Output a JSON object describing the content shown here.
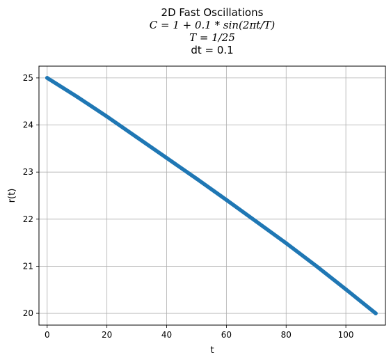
{
  "chart_data": {
    "type": "line",
    "title_lines": [
      "2D Fast Oscillations",
      "C = 1 + 0.1 * sin(2πt/T)",
      "T = 1/25",
      "dt = 0.1"
    ],
    "xlabel": "t",
    "ylabel": "r(t)",
    "xlim": [
      -2.75,
      113.25
    ],
    "ylim": [
      19.75,
      25.25
    ],
    "x_ticks": [
      0,
      20,
      40,
      60,
      80,
      100
    ],
    "y_ticks": [
      20,
      21,
      22,
      23,
      24,
      25
    ],
    "grid": true,
    "series": [
      {
        "x": [
          0,
          10,
          20,
          30,
          40,
          50,
          60,
          70,
          80,
          90,
          100,
          110
        ],
        "y": [
          25.0,
          24.6,
          24.18,
          23.74,
          23.3,
          22.86,
          22.41,
          21.95,
          21.49,
          21.01,
          20.51,
          20.0
        ],
        "color": "#1f77b4"
      }
    ]
  }
}
